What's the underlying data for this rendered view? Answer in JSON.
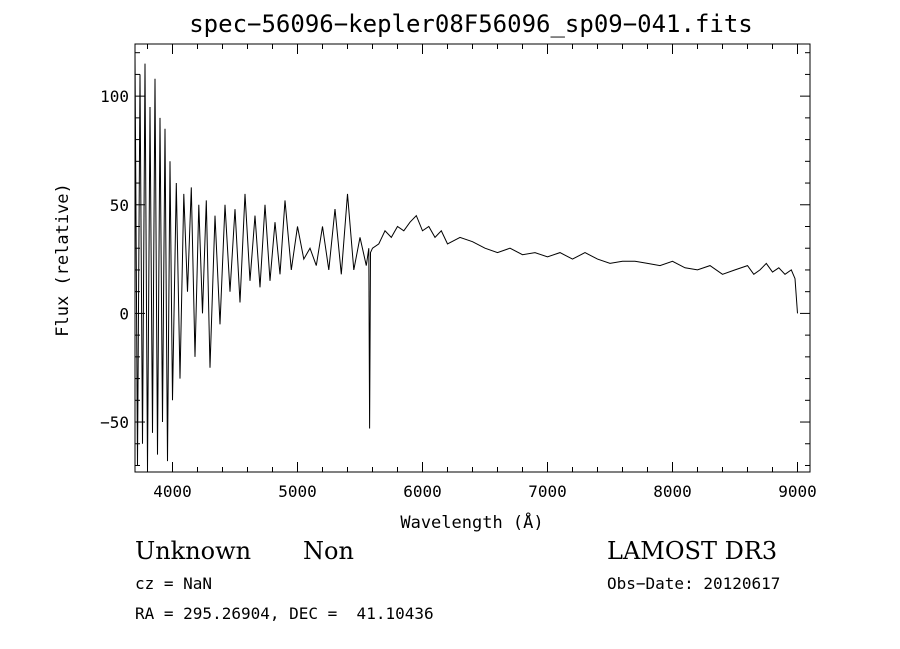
{
  "chart_data": {
    "type": "line",
    "title": "spec−56096−kepler08F56096_sp09−041.fits",
    "xlabel": "Wavelength (Å)",
    "ylabel": "Flux (relative)",
    "xlim": [
      3700,
      9100
    ],
    "ylim": [
      -73,
      124
    ],
    "x_ticks": [
      4000,
      5000,
      6000,
      7000,
      8000,
      9000
    ],
    "x_tick_labels": [
      "4000",
      "5000",
      "6000",
      "7000",
      "8000",
      "9000"
    ],
    "y_ticks": [
      -50,
      0,
      50,
      100
    ],
    "y_tick_labels": [
      "−50",
      "0",
      "50",
      "100"
    ],
    "grid": false,
    "series": [
      {
        "name": "flux",
        "x": [
          3700,
          3720,
          3740,
          3760,
          3780,
          3800,
          3820,
          3840,
          3860,
          3880,
          3900,
          3920,
          3940,
          3960,
          3980,
          4000,
          4030,
          4060,
          4090,
          4120,
          4150,
          4180,
          4210,
          4240,
          4270,
          4300,
          4340,
          4380,
          4420,
          4460,
          4500,
          4540,
          4580,
          4620,
          4660,
          4700,
          4740,
          4780,
          4820,
          4860,
          4900,
          4950,
          5000,
          5050,
          5100,
          5150,
          5200,
          5250,
          5300,
          5350,
          5400,
          5450,
          5500,
          5550,
          5570,
          5577,
          5584,
          5600,
          5650,
          5700,
          5750,
          5800,
          5850,
          5900,
          5950,
          6000,
          6050,
          6100,
          6150,
          6200,
          6300,
          6400,
          6500,
          6600,
          6700,
          6800,
          6900,
          7000,
          7100,
          7200,
          7300,
          7400,
          7500,
          7600,
          7700,
          7800,
          7900,
          8000,
          8100,
          8200,
          8300,
          8400,
          8500,
          8600,
          8650,
          8700,
          8750,
          8800,
          8850,
          8900,
          8950,
          8980,
          9000
        ],
        "values": [
          120,
          -70,
          110,
          -60,
          115,
          -72,
          95,
          -55,
          108,
          -65,
          90,
          -50,
          85,
          -68,
          70,
          -40,
          60,
          -30,
          55,
          10,
          58,
          -20,
          50,
          0,
          52,
          -25,
          45,
          -5,
          50,
          10,
          48,
          5,
          55,
          15,
          45,
          12,
          50,
          15,
          42,
          18,
          52,
          20,
          40,
          25,
          30,
          22,
          40,
          20,
          48,
          18,
          55,
          20,
          35,
          22,
          30,
          -53,
          28,
          30,
          32,
          38,
          35,
          40,
          38,
          42,
          45,
          38,
          40,
          35,
          38,
          32,
          35,
          33,
          30,
          28,
          30,
          27,
          28,
          26,
          28,
          25,
          28,
          25,
          23,
          24,
          24,
          23,
          22,
          24,
          21,
          20,
          22,
          18,
          20,
          22,
          18,
          20,
          23,
          19,
          21,
          18,
          20,
          16,
          0
        ]
      }
    ]
  },
  "info": {
    "class": "Unknown",
    "subclass": "Non",
    "survey": "LAMOST DR3",
    "cz": "cz = NaN",
    "obs_date": "Obs−Date: 20120617",
    "radec": "RA = 295.26904, DEC =  41.10436"
  }
}
